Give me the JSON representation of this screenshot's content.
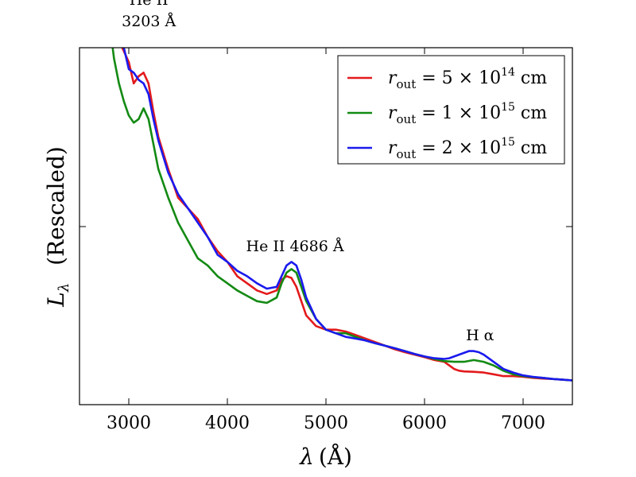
{
  "chart_data": {
    "type": "line",
    "title": "",
    "xlabel_symbol": "λ",
    "xlabel_unit": "(Å)",
    "ylabel_symbol": "L",
    "ylabel_sub": "λ",
    "ylabel_text": "(Rescaled)",
    "xlim": [
      2500,
      7500
    ],
    "ylim": [
      0,
      1
    ],
    "xticks": [
      3000,
      4000,
      5000,
      6000,
      7000
    ],
    "xtick_labels": [
      "3000",
      "4000",
      "5000",
      "6000",
      "7000"
    ],
    "grid": false,
    "legend_position": "top-right",
    "series": [
      {
        "name": "r_out = 5 × 10^14 cm",
        "legend": {
          "var": "r",
          "sub": "out",
          "eq": " = 5 × 10",
          "exp": "14",
          "unit": " cm"
        },
        "color": "#e31a1c",
        "x": [
          2800,
          2900,
          3000,
          3050,
          3100,
          3150,
          3200,
          3250,
          3300,
          3400,
          3500,
          3600,
          3700,
          3800,
          3900,
          4000,
          4100,
          4200,
          4300,
          4400,
          4500,
          4550,
          4600,
          4650,
          4700,
          4750,
          4800,
          4900,
          5000,
          5100,
          5200,
          5300,
          5400,
          5500,
          5600,
          5700,
          5800,
          5900,
          6000,
          6100,
          6200,
          6250,
          6300,
          6350,
          6400,
          6500,
          6600,
          6700,
          6800,
          6900,
          7000,
          7100,
          7200,
          7300,
          7400,
          7500
        ],
        "y": [
          1.08,
          1.02,
          0.96,
          0.9,
          0.92,
          0.93,
          0.9,
          0.82,
          0.75,
          0.66,
          0.58,
          0.55,
          0.52,
          0.47,
          0.43,
          0.4,
          0.36,
          0.34,
          0.32,
          0.31,
          0.32,
          0.35,
          0.36,
          0.355,
          0.33,
          0.29,
          0.25,
          0.22,
          0.21,
          0.21,
          0.205,
          0.195,
          0.185,
          0.175,
          0.165,
          0.155,
          0.147,
          0.14,
          0.133,
          0.125,
          0.12,
          0.11,
          0.1,
          0.095,
          0.093,
          0.092,
          0.09,
          0.085,
          0.08,
          0.08,
          0.078,
          0.075,
          0.073,
          0.072,
          0.07,
          0.068
        ]
      },
      {
        "name": "r_out = 1 × 10^15 cm",
        "legend": {
          "var": "r",
          "sub": "out",
          "eq": " = 1 × 10",
          "exp": "15",
          "unit": " cm"
        },
        "color": "#138a13",
        "x": [
          2800,
          2850,
          2900,
          2950,
          3000,
          3050,
          3100,
          3150,
          3200,
          3250,
          3300,
          3400,
          3500,
          3600,
          3700,
          3800,
          3900,
          4000,
          4100,
          4200,
          4300,
          4400,
          4500,
          4550,
          4600,
          4650,
          4700,
          4750,
          4800,
          4900,
          5000,
          5100,
          5200,
          5300,
          5400,
          5500,
          5600,
          5700,
          5800,
          5900,
          6000,
          6100,
          6200,
          6300,
          6400,
          6500,
          6600,
          6700,
          6800,
          6900,
          7000,
          7100,
          7200,
          7300,
          7400,
          7500
        ],
        "y": [
          1.08,
          0.97,
          0.9,
          0.85,
          0.81,
          0.79,
          0.8,
          0.83,
          0.8,
          0.73,
          0.66,
          0.58,
          0.51,
          0.46,
          0.41,
          0.39,
          0.36,
          0.34,
          0.32,
          0.305,
          0.29,
          0.285,
          0.3,
          0.34,
          0.37,
          0.38,
          0.37,
          0.33,
          0.29,
          0.24,
          0.21,
          0.2,
          0.2,
          0.19,
          0.18,
          0.172,
          0.165,
          0.158,
          0.15,
          0.142,
          0.135,
          0.128,
          0.122,
          0.12,
          0.12,
          0.125,
          0.12,
          0.11,
          0.095,
          0.085,
          0.08,
          0.077,
          0.075,
          0.072,
          0.07,
          0.068
        ]
      },
      {
        "name": "r_out = 2 × 10^15 cm",
        "legend": {
          "var": "r",
          "sub": "out",
          "eq": " = 2 × 10",
          "exp": "15",
          "unit": " cm"
        },
        "color": "#1a1aee",
        "x": [
          2900,
          2950,
          3000,
          3050,
          3100,
          3150,
          3200,
          3250,
          3300,
          3400,
          3500,
          3600,
          3700,
          3800,
          3900,
          4000,
          4100,
          4200,
          4300,
          4400,
          4500,
          4550,
          4600,
          4650,
          4700,
          4750,
          4800,
          4900,
          5000,
          5100,
          5200,
          5300,
          5400,
          5500,
          5600,
          5700,
          5800,
          5900,
          6000,
          6100,
          6200,
          6250,
          6300,
          6400,
          6450,
          6500,
          6550,
          6600,
          6700,
          6800,
          6900,
          7000,
          7100,
          7200,
          7300,
          7400,
          7500
        ],
        "y": [
          1.05,
          1.0,
          0.94,
          0.93,
          0.91,
          0.9,
          0.87,
          0.8,
          0.74,
          0.65,
          0.59,
          0.55,
          0.51,
          0.47,
          0.42,
          0.4,
          0.375,
          0.36,
          0.34,
          0.325,
          0.33,
          0.36,
          0.39,
          0.4,
          0.39,
          0.35,
          0.3,
          0.24,
          0.21,
          0.2,
          0.19,
          0.185,
          0.18,
          0.172,
          0.165,
          0.158,
          0.15,
          0.142,
          0.135,
          0.13,
          0.128,
          0.13,
          0.135,
          0.145,
          0.15,
          0.15,
          0.147,
          0.14,
          0.12,
          0.1,
          0.09,
          0.082,
          0.078,
          0.075,
          0.072,
          0.07,
          0.068
        ]
      }
    ],
    "annotations": [
      {
        "lines": [
          "He II",
          "3203 Å"
        ],
        "x": 3203,
        "y_text": 1.12
      },
      {
        "lines": [
          "He II 4686 Å"
        ],
        "x": 4686,
        "y_text": 0.43
      },
      {
        "lines": [
          "H α"
        ],
        "x": 6563,
        "y_text": 0.18
      }
    ]
  }
}
